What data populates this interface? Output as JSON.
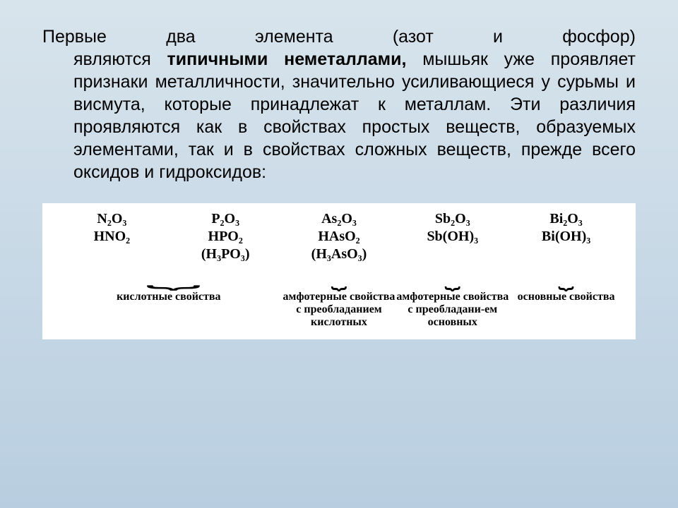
{
  "paragraph": {
    "line1_a": "Первые",
    "line1_b": "два",
    "line1_c": "элемента",
    "line1_d": "(азот",
    "line1_e": "и",
    "line1_f": "фосфор)",
    "rest_a": "являются ",
    "bold": "типичными неметаллами,",
    "rest_b": " мышьяк уже проявляет признаки металличности, значительно усиливающиеся у сурьмы и висмута, которые принадлежат к металлам. Эти различия проявляются как в свойствах простых веществ, образуемых элементами, так и в свойствах сложных веществ, прежде всего оксидов и гидроксидов:"
  },
  "columns": [
    {
      "f1": "N₂O₃",
      "f2": "HNO₂",
      "f3": ""
    },
    {
      "f1": "P₂O₃",
      "f2": "HPO₂",
      "f3": "(H₃PO₃)"
    },
    {
      "f1": "As₂O₃",
      "f2": "HAsO₂",
      "f3": "(H₃AsO₃)"
    },
    {
      "f1": "Sb₂O₃",
      "f2": "Sb(OH)₃",
      "f3": ""
    },
    {
      "f1": "Bi₂O₃",
      "f2": "Bi(OH)₃",
      "f3": ""
    }
  ],
  "labels": {
    "acidic": "кислотные свойства",
    "amph_acid": "амфотерные свойства с преобладанием кислотных",
    "amph_base": "амфотерные свойства с преобладани-ем основных",
    "basic": "основные свойства"
  },
  "brace_glyph": "⏟"
}
